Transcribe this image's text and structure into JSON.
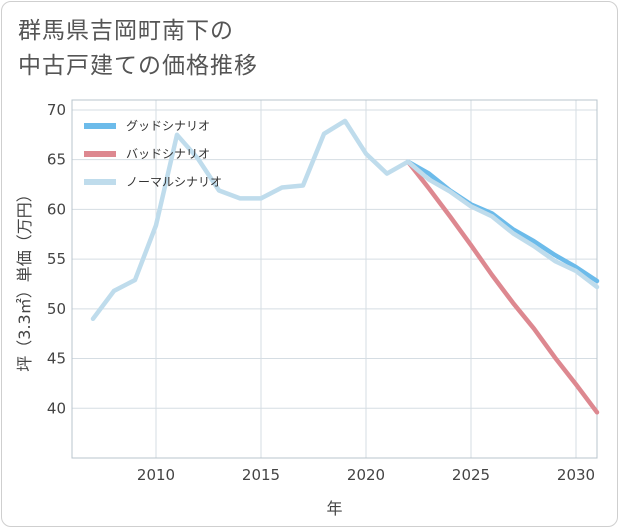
{
  "title_lines": [
    "群馬県吉岡町南下の",
    "中古戸建ての価格推移"
  ],
  "chart_data": {
    "type": "line",
    "xlabel": "年",
    "ylabel": "坪（3.3㎡）単価（万円）",
    "xlim": [
      2006,
      2031
    ],
    "ylim": [
      35,
      71
    ],
    "xticks": [
      2010,
      2015,
      2020,
      2025,
      2030
    ],
    "yticks": [
      40,
      45,
      50,
      55,
      60,
      65,
      70
    ],
    "grid": true,
    "legend_position": "top-left",
    "series": [
      {
        "name": "グッドシナリオ",
        "color": "#6cbbea",
        "x": [
          2022,
          2023,
          2024,
          2025,
          2026,
          2027,
          2028,
          2029,
          2030,
          2031
        ],
        "y": [
          64.8,
          63.6,
          61.9,
          60.5,
          59.6,
          58.0,
          56.8,
          55.4,
          54.2,
          52.8
        ]
      },
      {
        "name": "バッドシナリオ",
        "color": "#dd8890",
        "x": [
          2022,
          2023,
          2024,
          2025,
          2026,
          2027,
          2028,
          2029,
          2030,
          2031
        ],
        "y": [
          64.8,
          62.1,
          59.3,
          56.4,
          53.4,
          50.6,
          48.0,
          45.1,
          42.4,
          39.6
        ]
      },
      {
        "name": "ノーマルシナリオ",
        "color": "#bfdcec",
        "x": [
          2007,
          2008,
          2009,
          2010,
          2011,
          2012,
          2013,
          2014,
          2015,
          2016,
          2017,
          2018,
          2019,
          2020,
          2021,
          2022,
          2023,
          2024,
          2025,
          2026,
          2027,
          2028,
          2029,
          2030,
          2031
        ],
        "y": [
          49.0,
          51.8,
          52.9,
          58.4,
          67.5,
          65.1,
          61.9,
          61.1,
          61.1,
          62.2,
          62.4,
          67.6,
          68.9,
          65.6,
          63.6,
          64.8,
          63.0,
          61.8,
          60.3,
          59.3,
          57.6,
          56.3,
          54.8,
          53.8,
          52.2
        ]
      }
    ]
  }
}
